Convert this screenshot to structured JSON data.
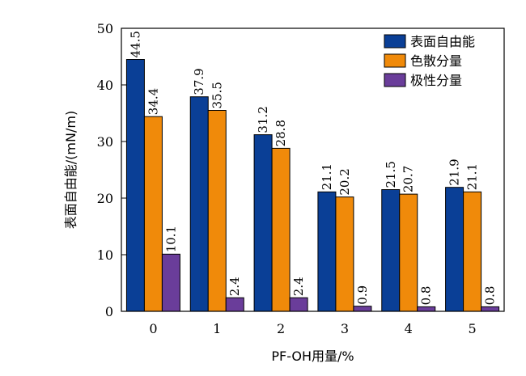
{
  "chart_data": {
    "type": "bar",
    "xlabel": "PF-OH用量/%",
    "ylabel": "表面自由能/(mN/m)",
    "ylim": [
      0,
      50
    ],
    "yticks": [
      0,
      10,
      20,
      30,
      40,
      50
    ],
    "categories": [
      "0",
      "1",
      "2",
      "3",
      "4",
      "5"
    ],
    "legend_position": "top-right",
    "grid": false,
    "series": [
      {
        "name": "表面自由能",
        "color": "#0a3f96",
        "values": [
          44.5,
          37.9,
          31.2,
          21.1,
          21.5,
          21.9
        ]
      },
      {
        "name": "色散分量",
        "color": "#f08a0a",
        "values": [
          34.4,
          35.5,
          28.8,
          20.2,
          20.7,
          21.1
        ]
      },
      {
        "name": "极性分量",
        "color": "#6a3d9a",
        "values": [
          10.1,
          2.4,
          2.4,
          0.9,
          0.8,
          0.8
        ]
      }
    ]
  }
}
